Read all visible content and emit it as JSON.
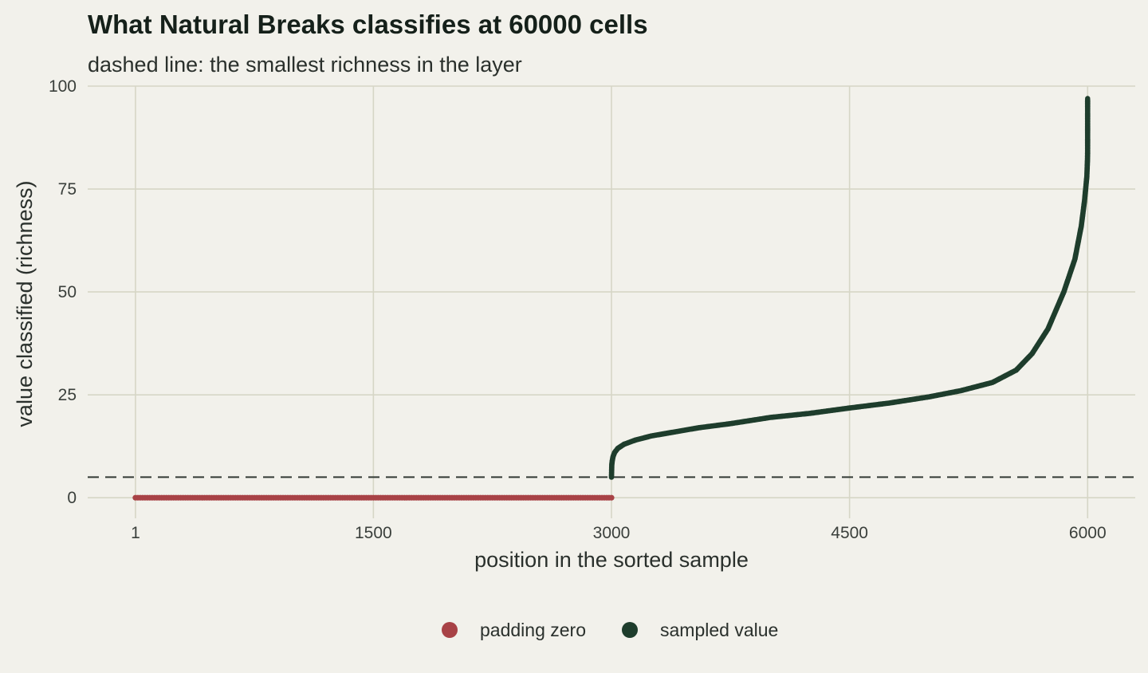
{
  "chart_data": {
    "type": "scatter",
    "title": "What Natural Breaks classifies at 60000 cells",
    "subtitle": "dashed line: the smallest richness in the layer",
    "xlabel": "position in the sorted sample",
    "ylabel": "value classified (richness)",
    "xlim": [
      -300,
      6300
    ],
    "ylim": [
      -5,
      100
    ],
    "x_ticks": [
      {
        "value": 1,
        "label": "1"
      },
      {
        "value": 1500,
        "label": "1500"
      },
      {
        "value": 3000,
        "label": "3000"
      },
      {
        "value": 4500,
        "label": "4500"
      },
      {
        "value": 6000,
        "label": "6000"
      }
    ],
    "y_ticks": [
      {
        "value": 0,
        "label": "0"
      },
      {
        "value": 25,
        "label": "25"
      },
      {
        "value": 50,
        "label": "50"
      },
      {
        "value": 75,
        "label": "75"
      },
      {
        "value": 100,
        "label": "100"
      }
    ],
    "grid": true,
    "reference_line": {
      "orientation": "horizontal",
      "y": 5,
      "style": "dashed"
    },
    "legend_position": "bottom",
    "series": [
      {
        "name": "padding zero",
        "color": "#a84246",
        "x_range": [
          1,
          3000
        ],
        "y_constant": 0
      },
      {
        "name": "sampled value",
        "color": "#1e3d2c",
        "points": [
          [
            3000,
            5
          ],
          [
            3002,
            8
          ],
          [
            3005,
            9
          ],
          [
            3010,
            10
          ],
          [
            3020,
            11
          ],
          [
            3040,
            12
          ],
          [
            3080,
            13
          ],
          [
            3150,
            14
          ],
          [
            3250,
            15
          ],
          [
            3400,
            16
          ],
          [
            3550,
            17
          ],
          [
            3750,
            18
          ],
          [
            4000,
            19.5
          ],
          [
            4250,
            20.5
          ],
          [
            4500,
            21.8
          ],
          [
            4750,
            23
          ],
          [
            5000,
            24.5
          ],
          [
            5200,
            26
          ],
          [
            5400,
            28
          ],
          [
            5550,
            31
          ],
          [
            5650,
            35
          ],
          [
            5750,
            41
          ],
          [
            5850,
            50
          ],
          [
            5920,
            58
          ],
          [
            5960,
            66
          ],
          [
            5980,
            72
          ],
          [
            5990,
            76
          ],
          [
            5995,
            78
          ],
          [
            5997,
            80
          ],
          [
            5998,
            81
          ],
          [
            5999,
            82
          ],
          [
            6000,
            84
          ],
          [
            6000,
            86
          ],
          [
            6000,
            88
          ],
          [
            6000,
            91
          ],
          [
            6000,
            97
          ]
        ]
      }
    ]
  }
}
